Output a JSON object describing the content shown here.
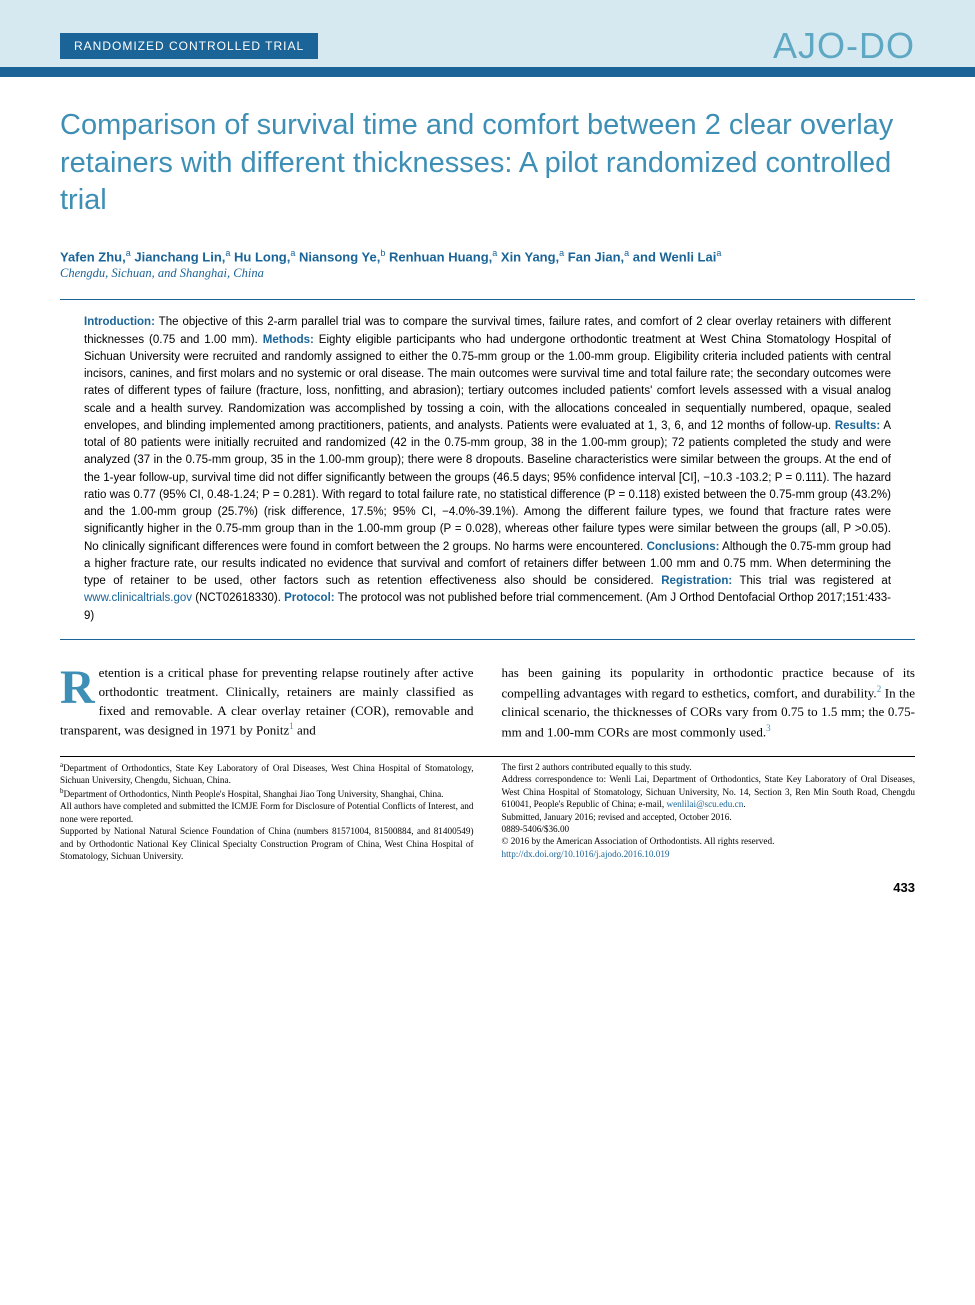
{
  "header": {
    "section_label": "RANDOMIZED CONTROLLED TRIAL",
    "journal_logo": "AJO-DO"
  },
  "title": "Comparison of survival time and comfort between 2 clear overlay retainers with different thicknesses: A pilot randomized controlled trial",
  "authors_html": "Yafen Zhu,<sup>a</sup> Jianchang Lin,<sup>a</sup> Hu Long,<sup>a</sup> Niansong Ye,<sup>b</sup> Renhuan Huang,<sup>a</sup> Xin Yang,<sup>a</sup> Fan Jian,<sup>a</sup> and Wenli Lai<sup>a</sup>",
  "location": "Chengdu, Sichuan, and Shanghai, China",
  "abstract": {
    "intro_label": "Introduction:",
    "intro": " The objective of this 2-arm parallel trial was to compare the survival times, failure rates, and comfort of 2 clear overlay retainers with different thicknesses (0.75 and 1.00 mm). ",
    "methods_label": "Methods:",
    "methods": " Eighty eligible participants who had undergone orthodontic treatment at West China Stomatology Hospital of Sichuan University were recruited and randomly assigned to either the 0.75-mm group or the 1.00-mm group. Eligibility criteria included patients with central incisors, canines, and first molars and no systemic or oral disease. The main outcomes were survival time and total failure rate; the secondary outcomes were rates of different types of failure (fracture, loss, nonfitting, and abrasion); tertiary outcomes included patients' comfort levels assessed with a visual analog scale and a health survey. Randomization was accomplished by tossing a coin, with the allocations concealed in sequentially numbered, opaque, sealed envelopes, and blinding implemented among practitioners, patients, and analysts. Patients were evaluated at 1, 3, 6, and 12 months of follow-up. ",
    "results_label": "Results:",
    "results": " A total of 80 patients were initially recruited and randomized (42 in the 0.75-mm group, 38 in the 1.00-mm group); 72 patients completed the study and were analyzed (37 in the 0.75-mm group, 35 in the 1.00-mm group); there were 8 dropouts. Baseline characteristics were similar between the groups. At the end of the 1-year follow-up, survival time did not differ significantly between the groups (46.5 days; 95% confidence interval [CI], −10.3 -103.2; P = 0.111). The hazard ratio was 0.77 (95% CI, 0.48-1.24; P = 0.281). With regard to total failure rate, no statistical difference (P = 0.118) existed between the 0.75-mm group (43.2%) and the 1.00-mm group (25.7%) (risk difference, 17.5%; 95% CI, −4.0%-39.1%). Among the different failure types, we found that fracture rates were significantly higher in the 0.75-mm group than in the 1.00-mm group (P = 0.028), whereas other failure types were similar between the groups (all, P >0.05). No clinically significant differences were found in comfort between the 2 groups. No harms were encountered. ",
    "conclusions_label": "Conclusions:",
    "conclusions": " Although the 0.75-mm group had a higher fracture rate, our results indicated no evidence that survival and comfort of retainers differ between 1.00 mm and 0.75 mm. When determining the type of retainer to be used, other factors such as retention effectiveness also should be considered. ",
    "registration_label": "Registration:",
    "registration_pre": " This trial was registered at ",
    "registration_url": "www.clinicaltrials.gov",
    "registration_post": " (NCT02618330). ",
    "protocol_label": "Protocol:",
    "protocol": " The protocol was not published before trial commencement. (Am J Orthod Dentofacial Orthop 2017;151:433-9)"
  },
  "body": {
    "dropcap": "R",
    "col1": "etention is a critical phase for preventing relapse routinely after active orthodontic treatment. Clinically, retainers are mainly classified as fixed and removable. A clear overlay retainer (COR), removable and transparent, was designed in 1971 by Ponitz",
    "col1_sup": "1",
    "col1_post": " and",
    "col2_pre": "has been gaining its popularity in orthodontic practice because of its compelling advantages with regard to esthetics, comfort, and durability.",
    "col2_sup1": "2",
    "col2_mid": " In the clinical scenario, the thicknesses of CORs vary from 0.75 to 1.5 mm; the 0.75-mm and 1.00-mm CORs are most commonly used.",
    "col2_sup2": "3"
  },
  "footnotes": {
    "left": [
      "<sup>a</sup>Department of Orthodontics, State Key Laboratory of Oral Diseases, West China Hospital of Stomatology, Sichuan University, Chengdu, Sichuan, China.",
      "<sup>b</sup>Department of Orthodontics, Ninth People's Hospital, Shanghai Jiao Tong University, Shanghai, China.",
      "All authors have completed and submitted the ICMJE Form for Disclosure of Potential Conflicts of Interest, and none were reported.",
      "Supported by National Natural Science Foundation of China (numbers 81571004, 81500884, and 81400549) and by Orthodontic National Key Clinical Specialty Construction Program of China, West China Hospital of Stomatology, Sichuan University."
    ],
    "right_pre": "The first 2 authors contributed equally to this study.\nAddress correspondence to: Wenli Lai, Department of Orthodontics, State Key Laboratory of Oral Diseases, West China Hospital of Stomatology, Sichuan University, No. 14, Section 3, Ren Min South Road, Chengdu 610041, People's Republic of China; e-mail, ",
    "right_email": "wenlilai@scu.edu.cn",
    "right_post": ".\nSubmitted, January 2016; revised and accepted, October 2016.\n0889-5406/$36.00\n© 2016 by the American Association of Orthodontists. All rights reserved.\n",
    "right_doi": "http://dx.doi.org/10.1016/j.ajodo.2016.10.019"
  },
  "pagenum": "433",
  "colors": {
    "header_bg": "#d6e9f0",
    "accent_blue": "#1a6498",
    "title_blue": "#3d8fb5",
    "logo_blue": "#5fa8c4"
  }
}
